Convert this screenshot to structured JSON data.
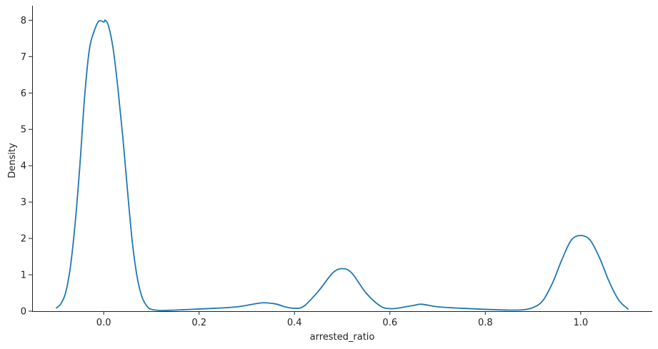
{
  "chart_data": {
    "type": "line",
    "kind": "kde",
    "title": "",
    "xlabel": "arrested_ratio",
    "ylabel": "Density",
    "xlim": [
      -0.15,
      1.15
    ],
    "ylim": [
      0,
      8.4
    ],
    "xticks": [
      0.0,
      0.2,
      0.4,
      0.6,
      0.8,
      1.0
    ],
    "xtick_labels": [
      "0.0",
      "0.2",
      "0.4",
      "0.6",
      "0.8",
      "1.0"
    ],
    "yticks": [
      0,
      1,
      2,
      3,
      4,
      5,
      6,
      7,
      8
    ],
    "ytick_labels": [
      "0",
      "1",
      "2",
      "3",
      "4",
      "5",
      "6",
      "7",
      "8"
    ],
    "grid": false,
    "legend": "none",
    "line_color": "#1f77b4",
    "series": [
      {
        "x": [
          -0.1,
          -0.09,
          -0.08,
          -0.07,
          -0.06,
          -0.05,
          -0.04,
          -0.03,
          -0.02,
          -0.01,
          0.0,
          0.003,
          0.01,
          0.02,
          0.03,
          0.04,
          0.05,
          0.06,
          0.07,
          0.08,
          0.09,
          0.1,
          0.12,
          0.15,
          0.2,
          0.25,
          0.28,
          0.3,
          0.333,
          0.36,
          0.38,
          0.4,
          0.42,
          0.45,
          0.48,
          0.5,
          0.52,
          0.55,
          0.58,
          0.6,
          0.62,
          0.65,
          0.667,
          0.7,
          0.75,
          0.8,
          0.85,
          0.88,
          0.9,
          0.92,
          0.94,
          0.96,
          0.98,
          1.0,
          1.02,
          1.04,
          1.06,
          1.08,
          1.1
        ],
        "y": [
          0.08,
          0.2,
          0.5,
          1.2,
          2.4,
          4.0,
          5.9,
          7.2,
          7.7,
          7.98,
          7.95,
          8.0,
          7.85,
          7.2,
          6.1,
          4.8,
          3.3,
          1.9,
          0.95,
          0.4,
          0.15,
          0.05,
          0.02,
          0.03,
          0.06,
          0.09,
          0.12,
          0.16,
          0.23,
          0.2,
          0.12,
          0.08,
          0.14,
          0.55,
          1.05,
          1.17,
          1.05,
          0.5,
          0.14,
          0.07,
          0.09,
          0.16,
          0.19,
          0.12,
          0.08,
          0.05,
          0.03,
          0.04,
          0.1,
          0.28,
          0.75,
          1.4,
          1.95,
          2.08,
          1.95,
          1.45,
          0.8,
          0.3,
          0.05
        ]
      }
    ]
  }
}
